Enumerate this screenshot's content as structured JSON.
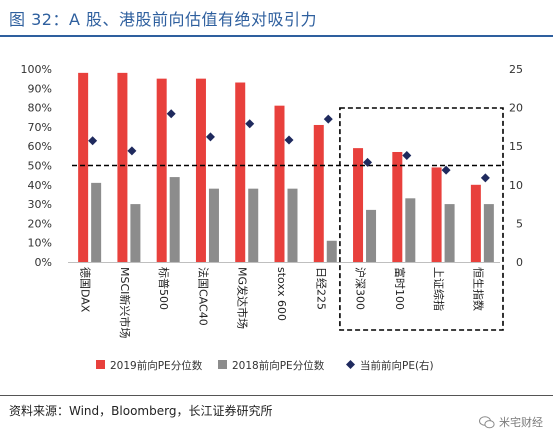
{
  "figure": {
    "title": "图 32：A 股、港股前向估值有绝对吸引力",
    "source": "资料来源：Wind，Bloomberg，长江证券研究所",
    "watermark": "米宅财经"
  },
  "chart_data": {
    "type": "bar",
    "categories": [
      "德国DAX",
      "MSCI新兴市场",
      "标普500",
      "法国CAC40",
      "MG发达市场",
      "stoxx 600",
      "日经225",
      "沪深300",
      "富时100",
      "上证综指",
      "恒生指数"
    ],
    "series": [
      {
        "name": "2019前向PE分位数",
        "type": "bar",
        "axis": "left",
        "color": "#e8403c",
        "values": [
          98,
          98,
          95,
          95,
          93,
          81,
          71,
          59,
          57,
          49,
          40
        ]
      },
      {
        "name": "2018前向PE分位数",
        "type": "bar",
        "axis": "left",
        "color": "#8c8c8c",
        "values": [
          41,
          30,
          44,
          38,
          38,
          38,
          11,
          27,
          33,
          30,
          30
        ]
      },
      {
        "name": "当前前向PE(右)",
        "type": "scatter",
        "axis": "right",
        "color": "#1f2a5e",
        "values": [
          15.7,
          14.4,
          19.2,
          16.2,
          17.9,
          15.8,
          18.5,
          12.9,
          13.8,
          11.9,
          10.9
        ]
      }
    ],
    "reference_line": {
      "axis": "left",
      "value": 50,
      "style": "dashed"
    },
    "highlight_box": [
      "沪深300",
      "恒生指数"
    ],
    "ylim_left": [
      0,
      100
    ],
    "yticks_left": [
      "0%",
      "10%",
      "20%",
      "30%",
      "40%",
      "50%",
      "60%",
      "70%",
      "80%",
      "90%",
      "100%"
    ],
    "ylim_right": [
      0,
      25
    ],
    "yticks_right": [
      "0",
      "5",
      "10",
      "15",
      "20",
      "25"
    ],
    "grid": false,
    "legend_position": "bottom"
  }
}
